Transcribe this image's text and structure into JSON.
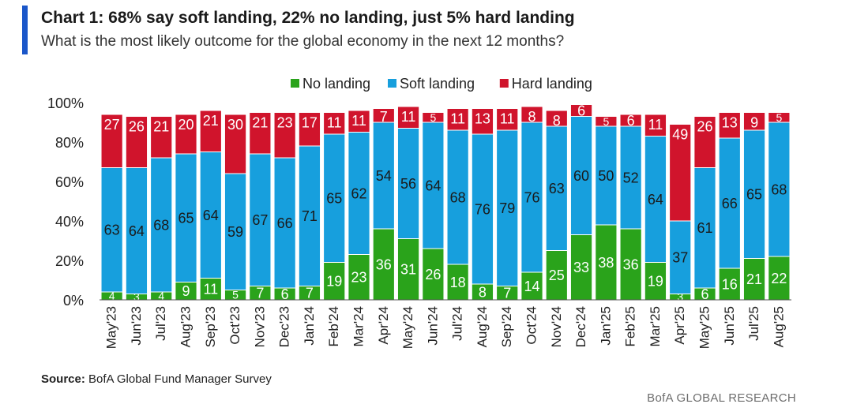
{
  "header": {
    "title": "Chart 1: 68% say soft landing, 22% no landing, just 5% hard landing",
    "subtitle": "What is the most likely outcome for the global economy in the next 12 months?"
  },
  "footer": {
    "source_label": "Source:",
    "source_text": "BofA Global Fund Manager Survey",
    "brand": "BofA GLOBAL RESEARCH"
  },
  "colors": {
    "no_landing": "#2aa31b",
    "soft_landing": "#179fdd",
    "hard_landing": "#d0142c",
    "accent": "#1a56c9"
  },
  "chart_data": {
    "type": "bar",
    "stacked": true,
    "categories": [
      "May'23",
      "Jun'23",
      "Jul'23",
      "Aug'23",
      "Sep'23",
      "Oct'23",
      "Nov'23",
      "Dec'23",
      "Jan'24",
      "Feb'24",
      "Mar'24",
      "Apr'24",
      "May'24",
      "Jun'24",
      "Jul'24",
      "Aug'24",
      "Sep'24",
      "Oct'24",
      "Nov'24",
      "Dec'24",
      "Jan'25",
      "Feb'25",
      "Mar'25",
      "Apr'25",
      "May'25",
      "Jun'25",
      "Jul'25",
      "Aug'25"
    ],
    "series": [
      {
        "name": "No landing",
        "color": "#2aa31b",
        "values": [
          4,
          3,
          4,
          9,
          11,
          5,
          7,
          6,
          7,
          19,
          23,
          36,
          31,
          26,
          18,
          8,
          7,
          14,
          25,
          33,
          38,
          36,
          19,
          3,
          6,
          16,
          21,
          22
        ]
      },
      {
        "name": "Soft landing",
        "color": "#179fdd",
        "values": [
          63,
          64,
          68,
          65,
          64,
          59,
          67,
          66,
          71,
          65,
          62,
          54,
          56,
          64,
          68,
          76,
          79,
          76,
          63,
          60,
          50,
          52,
          64,
          37,
          61,
          66,
          65,
          68
        ]
      },
      {
        "name": "Hard landing",
        "color": "#d0142c",
        "values": [
          27,
          26,
          21,
          20,
          21,
          30,
          21,
          23,
          17,
          11,
          11,
          7,
          11,
          5,
          11,
          13,
          11,
          8,
          8,
          6,
          5,
          6,
          11,
          49,
          26,
          13,
          9,
          5
        ]
      }
    ],
    "y_ticks": [
      "0%",
      "20%",
      "40%",
      "60%",
      "80%",
      "100%"
    ],
    "ylim": [
      0,
      100
    ],
    "legend": "top-center",
    "grid": false
  }
}
